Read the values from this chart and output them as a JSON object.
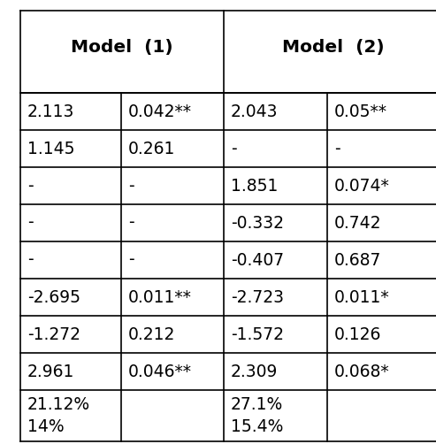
{
  "col1": [
    "2.113",
    "1.145",
    "-",
    "-",
    "-",
    "-2.695",
    "-1.272",
    "2.961"
  ],
  "col2": [
    "0.042**",
    "0.261",
    "-",
    "-",
    "-",
    "0.011**",
    "0.212",
    "0.046**"
  ],
  "col3": [
    "2.043",
    "-",
    "1.851",
    "-0.332",
    "-0.407",
    "-2.723",
    "-1.572",
    "2.309"
  ],
  "col4": [
    "0.05**",
    "-",
    "0.074*",
    "0.742",
    "0.687",
    "0.011*",
    "0.126",
    "0.068*"
  ],
  "pct_m1_line1": "21.12%",
  "pct_m1_line2": "14%",
  "pct_m2_line1": "27.1%",
  "pct_m2_line2": "15.4%",
  "header1": "Model  (1)",
  "header2": "Model  (2)",
  "bg": "#ffffff",
  "fg": "#000000",
  "font_size": 13.5,
  "header_font_size": 14.5
}
